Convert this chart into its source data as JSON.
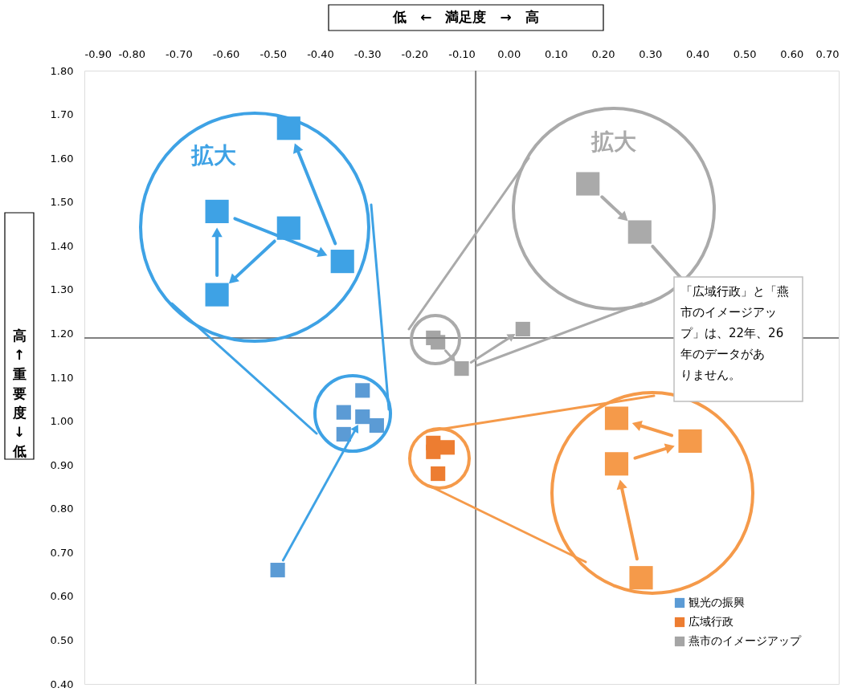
{
  "chart_data": {
    "type": "scatter",
    "xlabel": "低　←　満足度　→　高",
    "ylabel": "高↑　重要度　↓低",
    "xlim": [
      -0.9,
      0.7
    ],
    "ylim": [
      0.4,
      1.8
    ],
    "xticks": [
      {
        "value": -0.9,
        "label": "-0.90"
      },
      {
        "value": -0.8,
        "label": "-0.80"
      },
      {
        "value": -0.7,
        "label": "-0.70"
      },
      {
        "value": -0.6,
        "label": "-0.60"
      },
      {
        "value": -0.5,
        "label": "-0.50"
      },
      {
        "value": -0.4,
        "label": "-0.40"
      },
      {
        "value": -0.3,
        "label": "-0.30"
      },
      {
        "value": -0.2,
        "label": "-0.20"
      },
      {
        "value": -0.1,
        "label": "-0.10"
      },
      {
        "value": 0.0,
        "label": "0.00"
      },
      {
        "value": 0.1,
        "label": "0.10"
      },
      {
        "value": 0.2,
        "label": "0.20"
      },
      {
        "value": 0.3,
        "label": "0.30"
      },
      {
        "value": 0.4,
        "label": "0.40"
      },
      {
        "value": 0.5,
        "label": "0.50"
      },
      {
        "value": 0.6,
        "label": "0.60"
      },
      {
        "value": 0.7,
        "label": "0.70"
      }
    ],
    "yticks": [
      {
        "value": 0.4,
        "label": "0.40"
      },
      {
        "value": 0.5,
        "label": "0.50"
      },
      {
        "value": 0.6,
        "label": "0.60"
      },
      {
        "value": 0.7,
        "label": "0.70"
      },
      {
        "value": 0.8,
        "label": "0.80"
      },
      {
        "value": 0.9,
        "label": "0.90"
      },
      {
        "value": 1.0,
        "label": "1.00"
      },
      {
        "value": 1.1,
        "label": "1.10"
      },
      {
        "value": 1.2,
        "label": "1.20"
      },
      {
        "value": 1.3,
        "label": "1.30"
      },
      {
        "value": 1.4,
        "label": "1.40"
      },
      {
        "value": 1.5,
        "label": "1.50"
      },
      {
        "value": 1.6,
        "label": "1.60"
      },
      {
        "value": 1.7,
        "label": "1.70"
      },
      {
        "value": 1.8,
        "label": "1.80"
      }
    ],
    "series": [
      {
        "name": "観光の振興",
        "color": "#5b9bd5",
        "x": [
          -0.49,
          -0.31,
          -0.35,
          -0.35,
          -0.28,
          -0.31
        ],
        "values": [
          0.66,
          1.01,
          0.97,
          1.02,
          0.99,
          1.07
        ]
      },
      {
        "name": "広域行政",
        "color": "#ed7d31",
        "x": [
          -0.15,
          -0.16,
          -0.13,
          -0.16
        ],
        "values": [
          0.88,
          0.93,
          0.94,
          0.95
        ]
      },
      {
        "name": "燕市のイメージアップ",
        "color": "#a5a5a5",
        "x": [
          -0.16,
          -0.15,
          -0.1,
          0.03
        ],
        "values": [
          1.19,
          1.18,
          1.12,
          1.21
        ]
      }
    ],
    "ref_lines": [
      {
        "axis": "x",
        "value": -0.07,
        "color": "#808080"
      },
      {
        "axis": "y",
        "value": 1.19,
        "color": "#808080"
      }
    ],
    "annotations": [
      "拡大",
      "拡大",
      "「広域行政」と「燕市のイメージアップ」は、22年、26年のデータがありません。"
    ],
    "marker": "square",
    "legend": "bottom right",
    "grid": false
  }
}
